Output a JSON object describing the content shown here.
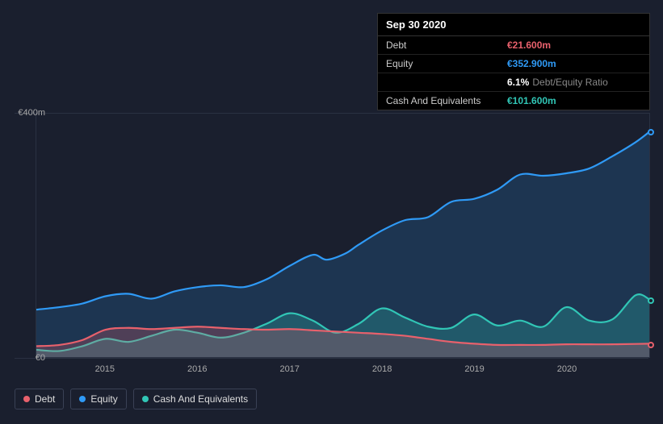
{
  "colors": {
    "background": "#1a1f2e",
    "grid": "#2a3142",
    "axis_text": "#aaaaaa",
    "debt": "#e8616c",
    "equity": "#2f9af6",
    "cash": "#31c6b6",
    "debt_fill": "rgba(232,97,108,0.25)",
    "equity_fill": "rgba(47,154,246,0.18)",
    "cash_fill": "rgba(49,198,182,0.25)"
  },
  "tooltip": {
    "date": "Sep 30 2020",
    "rows": [
      {
        "label": "Debt",
        "value": "€21.600m",
        "color_key": "debt"
      },
      {
        "label": "Equity",
        "value": "€352.900m",
        "color_key": "equity"
      },
      {
        "label": "",
        "value": "6.1%",
        "suffix": "Debt/Equity Ratio",
        "color_key": null
      },
      {
        "label": "Cash And Equivalents",
        "value": "€101.600m",
        "color_key": "cash"
      }
    ]
  },
  "chart": {
    "type": "area-line",
    "ylim": [
      0,
      400
    ],
    "y_ticks": [
      {
        "v": 0,
        "label": "€0"
      },
      {
        "v": 400,
        "label": "€400m"
      }
    ],
    "x_range": [
      2014.25,
      2020.9
    ],
    "x_ticks": [
      2015,
      2016,
      2017,
      2018,
      2019,
      2020
    ],
    "line_width": 2.2,
    "series": [
      {
        "name": "Equity",
        "color_key": "equity",
        "fill_key": "equity_fill",
        "fill": true,
        "points": [
          [
            2014.25,
            78
          ],
          [
            2014.5,
            82
          ],
          [
            2014.75,
            88
          ],
          [
            2015.0,
            100
          ],
          [
            2015.25,
            104
          ],
          [
            2015.5,
            96
          ],
          [
            2015.75,
            108
          ],
          [
            2016.0,
            115
          ],
          [
            2016.25,
            118
          ],
          [
            2016.5,
            115
          ],
          [
            2016.75,
            128
          ],
          [
            2017.0,
            150
          ],
          [
            2017.25,
            168
          ],
          [
            2017.4,
            160
          ],
          [
            2017.6,
            170
          ],
          [
            2017.75,
            185
          ],
          [
            2018.0,
            208
          ],
          [
            2018.25,
            225
          ],
          [
            2018.5,
            230
          ],
          [
            2018.75,
            255
          ],
          [
            2019.0,
            260
          ],
          [
            2019.25,
            275
          ],
          [
            2019.5,
            300
          ],
          [
            2019.75,
            298
          ],
          [
            2020.0,
            302
          ],
          [
            2020.25,
            310
          ],
          [
            2020.5,
            330
          ],
          [
            2020.75,
            352.9
          ],
          [
            2020.9,
            370
          ]
        ],
        "end_marker": true
      },
      {
        "name": "Cash And Equivalents",
        "color_key": "cash",
        "fill_key": "cash_fill",
        "fill": true,
        "points": [
          [
            2014.25,
            12
          ],
          [
            2014.5,
            10
          ],
          [
            2014.75,
            18
          ],
          [
            2015.0,
            30
          ],
          [
            2015.25,
            25
          ],
          [
            2015.5,
            35
          ],
          [
            2015.75,
            45
          ],
          [
            2016.0,
            40
          ],
          [
            2016.25,
            32
          ],
          [
            2016.5,
            40
          ],
          [
            2016.75,
            55
          ],
          [
            2017.0,
            72
          ],
          [
            2017.25,
            60
          ],
          [
            2017.5,
            40
          ],
          [
            2017.75,
            55
          ],
          [
            2018.0,
            80
          ],
          [
            2018.25,
            65
          ],
          [
            2018.5,
            50
          ],
          [
            2018.75,
            48
          ],
          [
            2019.0,
            70
          ],
          [
            2019.25,
            52
          ],
          [
            2019.5,
            60
          ],
          [
            2019.75,
            50
          ],
          [
            2020.0,
            82
          ],
          [
            2020.25,
            60
          ],
          [
            2020.5,
            62
          ],
          [
            2020.75,
            101.6
          ],
          [
            2020.9,
            95
          ]
        ],
        "end_marker": true
      },
      {
        "name": "Debt",
        "color_key": "debt",
        "fill_key": "debt_fill",
        "fill": true,
        "points": [
          [
            2014.25,
            18
          ],
          [
            2014.5,
            20
          ],
          [
            2014.75,
            28
          ],
          [
            2015.0,
            45
          ],
          [
            2015.25,
            48
          ],
          [
            2015.5,
            46
          ],
          [
            2015.75,
            48
          ],
          [
            2016.0,
            50
          ],
          [
            2016.25,
            48
          ],
          [
            2016.5,
            46
          ],
          [
            2016.75,
            45
          ],
          [
            2017.0,
            46
          ],
          [
            2017.25,
            44
          ],
          [
            2017.5,
            42
          ],
          [
            2017.75,
            40
          ],
          [
            2018.0,
            38
          ],
          [
            2018.25,
            35
          ],
          [
            2018.5,
            30
          ],
          [
            2018.75,
            25
          ],
          [
            2019.0,
            22
          ],
          [
            2019.25,
            20
          ],
          [
            2019.5,
            20
          ],
          [
            2019.75,
            20
          ],
          [
            2020.0,
            21
          ],
          [
            2020.25,
            21
          ],
          [
            2020.5,
            21
          ],
          [
            2020.75,
            21.6
          ],
          [
            2020.9,
            22
          ]
        ],
        "end_marker": true
      }
    ]
  },
  "legend": [
    {
      "label": "Debt",
      "color_key": "debt"
    },
    {
      "label": "Equity",
      "color_key": "equity"
    },
    {
      "label": "Cash And Equivalents",
      "color_key": "cash"
    }
  ]
}
